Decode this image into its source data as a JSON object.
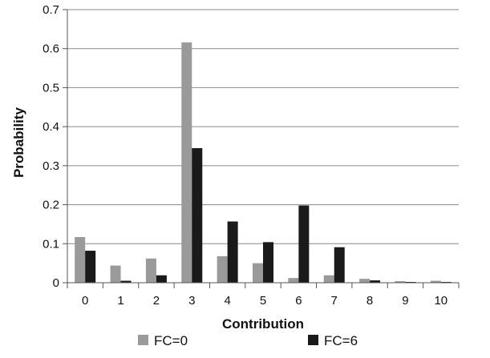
{
  "chart_data": {
    "type": "bar",
    "title": "",
    "xlabel": "Contribution",
    "ylabel": "Probability",
    "categories": [
      "0",
      "1",
      "2",
      "3",
      "4",
      "5",
      "6",
      "7",
      "8",
      "9",
      "10"
    ],
    "ylim": [
      0,
      0.7
    ],
    "yticks": [
      "0",
      "0.1",
      "0.2",
      "0.3",
      "0.4",
      "0.5",
      "0.6",
      "0.7"
    ],
    "grid": true,
    "legend_position": "bottom",
    "series": [
      {
        "name": "FC=0",
        "color": "#9a9a9a",
        "values": [
          0.117,
          0.044,
          0.062,
          0.616,
          0.068,
          0.05,
          0.012,
          0.019,
          0.01,
          0.004,
          0.005
        ]
      },
      {
        "name": "FC=6",
        "color": "#1a1a1a",
        "values": [
          0.082,
          0.005,
          0.019,
          0.345,
          0.157,
          0.104,
          0.198,
          0.091,
          0.006,
          0.002,
          0.002
        ]
      }
    ]
  }
}
